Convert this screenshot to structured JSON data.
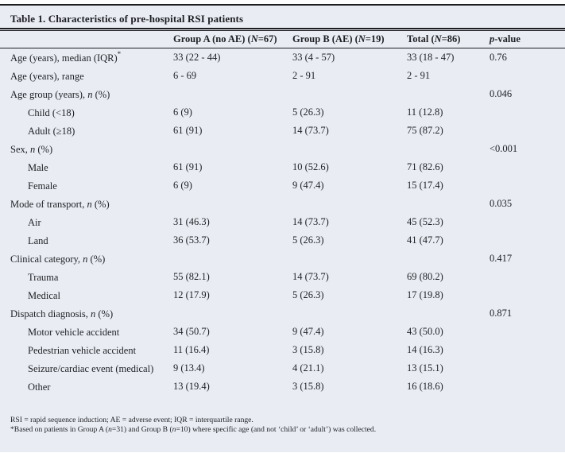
{
  "table": {
    "title": "Table 1. Characteristics of pre-hospital RSI patients",
    "columns": [
      {
        "pre": "Group A (no AE) (",
        "it": "N",
        "post": "=67)"
      },
      {
        "pre": "Group B (AE) (",
        "it": "N",
        "post": "=19)"
      },
      {
        "pre": "Total (",
        "it": "N",
        "post": "=86)"
      },
      {
        "pre": "",
        "it": "p",
        "post": "-value"
      }
    ],
    "rows": [
      {
        "pre": "Age (years), median (IQR)",
        "sup": "*",
        "indent": false,
        "a": "33 (22 - 44)",
        "b": "33 (4 - 57)",
        "t": "33 (18 - 47)",
        "p": "0.76"
      },
      {
        "pre": "Age (years), range",
        "indent": false,
        "a": "6 - 69",
        "b": "2 - 91",
        "t": "2 - 91",
        "p": ""
      },
      {
        "pre": "Age group (years), ",
        "it": "n",
        "post": " (%)",
        "indent": false,
        "a": "",
        "b": "",
        "t": "",
        "p": "0.046"
      },
      {
        "pre": "Child (<18)",
        "indent": true,
        "a": "6 (9)",
        "b": "5 (26.3)",
        "t": "11 (12.8)",
        "p": ""
      },
      {
        "pre": "Adult (≥18)",
        "indent": true,
        "a": "61 (91)",
        "b": "14 (73.7)",
        "t": "75 (87.2)",
        "p": ""
      },
      {
        "pre": "Sex, ",
        "it": "n",
        "post": " (%)",
        "indent": false,
        "a": "",
        "b": "",
        "t": "",
        "p": "<0.001"
      },
      {
        "pre": "Male",
        "indent": true,
        "a": "61 (91)",
        "b": "10 (52.6)",
        "t": "71 (82.6)",
        "p": ""
      },
      {
        "pre": "Female",
        "indent": true,
        "a": "6 (9)",
        "b": "9 (47.4)",
        "t": "15 (17.4)",
        "p": ""
      },
      {
        "pre": "Mode of transport, ",
        "it": "n",
        "post": " (%)",
        "indent": false,
        "a": "",
        "b": "",
        "t": "",
        "p": "0.035"
      },
      {
        "pre": "Air",
        "indent": true,
        "a": "31 (46.3)",
        "b": "14 (73.7)",
        "t": "45 (52.3)",
        "p": ""
      },
      {
        "pre": "Land",
        "indent": true,
        "a": "36 (53.7)",
        "b": "5 (26.3)",
        "t": "41 (47.7)",
        "p": ""
      },
      {
        "pre": "Clinical category, ",
        "it": "n",
        "post": " (%)",
        "indent": false,
        "a": "",
        "b": "",
        "t": "",
        "p": "0.417"
      },
      {
        "pre": "Trauma",
        "indent": true,
        "a": "55 (82.1)",
        "b": "14 (73.7)",
        "t": "69 (80.2)",
        "p": ""
      },
      {
        "pre": "Medical",
        "indent": true,
        "a": "12 (17.9)",
        "b": "5 (26.3)",
        "t": "17 (19.8)",
        "p": ""
      },
      {
        "pre": "Dispatch diagnosis, ",
        "it": "n",
        "post": " (%)",
        "indent": false,
        "a": "",
        "b": "",
        "t": "",
        "p": "0.871"
      },
      {
        "pre": "Motor vehicle accident",
        "indent": true,
        "a": "34 (50.7)",
        "b": "9 (47.4)",
        "t": "43 (50.0)",
        "p": ""
      },
      {
        "pre": "Pedestrian vehicle accident",
        "indent": true,
        "a": "11 (16.4)",
        "b": "3 (15.8)",
        "t": "14 (16.3)",
        "p": ""
      },
      {
        "pre": "Seizure/cardiac event (medical)",
        "indent": true,
        "a": "9 (13.4)",
        "b": "4 (21.1)",
        "t": "13 (15.1)",
        "p": ""
      },
      {
        "pre": "Other",
        "indent": true,
        "a": "13 (19.4)",
        "b": "3 (15.8)",
        "t": "16 (18.6)",
        "p": ""
      }
    ]
  },
  "footnotes": {
    "line1": "RSI = rapid sequence induction; AE = adverse event; IQR = interquartile range.",
    "line2": {
      "p1": "*Based on patients in Group A (",
      "i1": "n",
      "p2": "=31) and Group B (",
      "i2": "n",
      "p3": "=10) where specific age (and not ‘child’ or ‘adult’) was collected."
    }
  },
  "colors": {
    "panel_bg": "#e9edf3",
    "rule": "#1b1c20",
    "text": "#1e1f24"
  }
}
